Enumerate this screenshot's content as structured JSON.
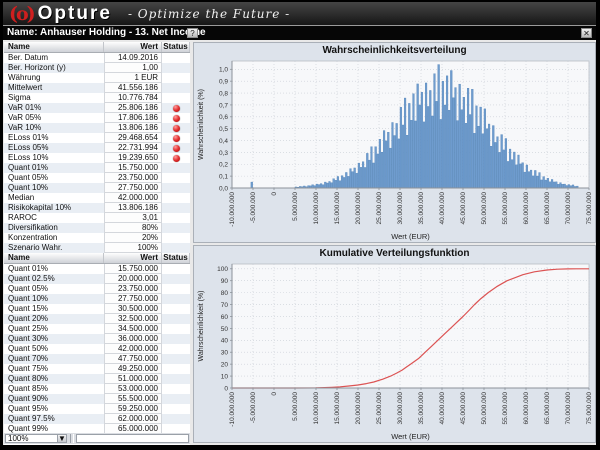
{
  "header": {
    "logo": "(o)",
    "brand": "Opture",
    "tagline": "-  Optimize the Future  -"
  },
  "titlebar": {
    "title": "Name: Anhauser Holding - 13. Net Income",
    "help_label": "?",
    "close_label": "✕"
  },
  "tables": [
    {
      "columns": [
        "Name",
        "Wert",
        "Status"
      ],
      "rows": [
        {
          "name": "Ber. Datum",
          "wert": "14.09.2016",
          "status": false
        },
        {
          "name": "Ber. Horizont (y)",
          "wert": "1,00",
          "status": false
        },
        {
          "name": "Währung",
          "wert": "1 EUR",
          "status": false
        },
        {
          "name": "Mittelwert",
          "wert": "41.556.186",
          "status": false
        },
        {
          "name": "Sigma",
          "wert": "10.776.784",
          "status": false
        },
        {
          "name": "VaR 01%",
          "wert": "25.806.186",
          "status": true
        },
        {
          "name": "VaR 05%",
          "wert": "17.806.186",
          "status": true
        },
        {
          "name": "VaR 10%",
          "wert": "13.806.186",
          "status": true
        },
        {
          "name": "ELoss 01%",
          "wert": "29.468.654",
          "status": true
        },
        {
          "name": "ELoss 05%",
          "wert": "22.731.994",
          "status": true
        },
        {
          "name": "ELoss 10%",
          "wert": "19.239.650",
          "status": true
        },
        {
          "name": "Quant 01%",
          "wert": "15.750.000",
          "status": false
        },
        {
          "name": "Quant 05%",
          "wert": "23.750.000",
          "status": false
        },
        {
          "name": "Quant 10%",
          "wert": "27.750.000",
          "status": false
        },
        {
          "name": "Median",
          "wert": "42.000.000",
          "status": false
        },
        {
          "name": "Risikokapital 10%",
          "wert": "13.806.186",
          "status": false
        },
        {
          "name": "RAROC",
          "wert": "3,01",
          "status": false
        },
        {
          "name": "Diversifikation",
          "wert": "80%",
          "status": false
        },
        {
          "name": "Konzentration",
          "wert": "20%",
          "status": false
        },
        {
          "name": "Szenario Wahr.",
          "wert": "100%",
          "status": false
        }
      ]
    },
    {
      "columns": [
        "Name",
        "Wert",
        "Status"
      ],
      "rows": [
        {
          "name": "Quant 01%",
          "wert": "15.750.000",
          "status": false
        },
        {
          "name": "Quant 02.5%",
          "wert": "20.000.000",
          "status": false
        },
        {
          "name": "Quant 05%",
          "wert": "23.750.000",
          "status": false
        },
        {
          "name": "Quant 10%",
          "wert": "27.750.000",
          "status": false
        },
        {
          "name": "Quant 15%",
          "wert": "30.500.000",
          "status": false
        },
        {
          "name": "Quant 20%",
          "wert": "32.500.000",
          "status": false
        },
        {
          "name": "Quant 25%",
          "wert": "34.500.000",
          "status": false
        },
        {
          "name": "Quant 30%",
          "wert": "36.000.000",
          "status": false
        },
        {
          "name": "Quant 50%",
          "wert": "42.000.000",
          "status": false
        },
        {
          "name": "Quant 70%",
          "wert": "47.750.000",
          "status": false
        },
        {
          "name": "Quant 75%",
          "wert": "49.250.000",
          "status": false
        },
        {
          "name": "Quant 80%",
          "wert": "51.000.000",
          "status": false
        },
        {
          "name": "Quant 85%",
          "wert": "53.000.000",
          "status": false
        },
        {
          "name": "Quant 90%",
          "wert": "55.500.000",
          "status": false
        },
        {
          "name": "Quant 95%",
          "wert": "59.250.000",
          "status": false
        },
        {
          "name": "Quant 97.5%",
          "wert": "62.000.000",
          "status": false
        },
        {
          "name": "Quant 99%",
          "wert": "65.000.000",
          "status": false
        }
      ]
    }
  ],
  "footer": {
    "zoom_value": "100%"
  },
  "colors": {
    "bar_fill": "#6f9cce",
    "bar_stroke": "#4e80b6",
    "cdf_line": "#dc5353",
    "panel_bg": "#dde3eb",
    "plot_bg": "#f7f8fa",
    "grid": "#c9cdd5",
    "axis": "#8c9299",
    "status_red": "#e23030"
  },
  "chart_data": [
    {
      "type": "bar",
      "title": "Wahrscheinlichkeitsverteilung",
      "xlabel": "Wert (EUR)",
      "ylabel": "Wahrscheinlichkeit (%)",
      "x_unit_millions_eur": true,
      "xlim": [
        -10,
        75
      ],
      "ylim": [
        0,
        1.07
      ],
      "grid": true,
      "x_ticks": [
        -10,
        -5,
        0,
        5,
        10,
        15,
        20,
        25,
        30,
        35,
        40,
        45,
        50,
        55,
        60,
        65,
        70,
        75
      ],
      "x_tick_labels": [
        "-10.000.000",
        "-5.000.000",
        "0",
        "5.000.000",
        "10.000.000",
        "15.000.000",
        "20.000.000",
        "25.000.000",
        "30.000.000",
        "35.000.000",
        "40.000.000",
        "45.000.000",
        "50.000.000",
        "55.000.000",
        "60.000.000",
        "65.000.000",
        "70.000.000",
        "75.000.000"
      ],
      "y_ticks": [
        0,
        0.1,
        0.2,
        0.3,
        0.4,
        0.5,
        0.6,
        0.7,
        0.8,
        0.9,
        1.0
      ],
      "y_tick_labels": [
        "0,0",
        "0,1",
        "0,2",
        "0,3",
        "0,4",
        "0,5",
        "0,6",
        "0,7",
        "0,8",
        "0,9",
        "1,0"
      ],
      "bin_start": 5.0,
      "bin_step": 0.5,
      "heights": [
        0.009,
        0.007,
        0.013,
        0.011,
        0.017,
        0.011,
        0.02,
        0.018,
        0.027,
        0.02,
        0.033,
        0.029,
        0.037,
        0.028,
        0.05,
        0.042,
        0.055,
        0.045,
        0.078,
        0.065,
        0.097,
        0.061,
        0.104,
        0.089,
        0.131,
        0.098,
        0.163,
        0.138,
        0.169,
        0.124,
        0.21,
        0.174,
        0.221,
        0.173,
        0.292,
        0.235,
        0.348,
        0.211,
        0.348,
        0.287,
        0.411,
        0.302,
        0.484,
        0.397,
        0.47,
        0.336,
        0.552,
        0.442,
        0.544,
        0.414,
        0.68,
        0.531,
        0.758,
        0.445,
        0.713,
        0.571,
        0.794,
        0.565,
        0.877,
        0.7,
        0.807,
        0.557,
        0.885,
        0.687,
        0.822,
        0.607,
        0.963,
        0.73,
        1.04,
        0.578,
        0.9,
        0.699,
        0.945,
        0.655,
        0.99,
        0.761,
        0.846,
        0.568,
        0.875,
        0.659,
        0.765,
        0.545,
        0.841,
        0.619,
        0.832,
        0.461,
        0.692,
        0.521,
        0.682,
        0.457,
        0.667,
        0.499,
        0.539,
        0.352,
        0.526,
        0.384,
        0.432,
        0.3,
        0.45,
        0.321,
        0.417,
        0.224,
        0.328,
        0.239,
        0.303,
        0.195,
        0.278,
        0.203,
        0.213,
        0.134,
        0.194,
        0.138,
        0.151,
        0.102,
        0.148,
        0.101,
        0.13,
        0.068,
        0.096,
        0.067,
        0.082,
        0.052,
        0.072,
        0.051,
        0.052,
        0.031,
        0.045,
        0.031,
        0.033,
        0.021,
        0.029,
        0.02,
        0.026,
        0.013,
        0.016
      ],
      "outlier_bar": {
        "x": -5.5,
        "height": 0.05
      }
    },
    {
      "type": "line",
      "title": "Kumulative Verteilungsfunktion",
      "xlabel": "Wert (EUR)",
      "ylabel": "Wahrscheinlichkeit (%)",
      "xlim": [
        -10,
        75
      ],
      "ylim": [
        0,
        104
      ],
      "grid": true,
      "x_ticks": [
        -10,
        -5,
        0,
        5,
        10,
        15,
        20,
        25,
        30,
        35,
        40,
        45,
        50,
        55,
        60,
        65,
        70,
        75
      ],
      "x_tick_labels": [
        "-10.000.000",
        "-5.000.000",
        "0",
        "5.000.000",
        "10.000.000",
        "15.000.000",
        "20.000.000",
        "25.000.000",
        "30.000.000",
        "35.000.000",
        "40.000.000",
        "45.000.000",
        "50.000.000",
        "55.000.000",
        "60.000.000",
        "65.000.000",
        "70.000.000",
        "75.000.000"
      ],
      "y_ticks": [
        0,
        10,
        20,
        30,
        40,
        50,
        60,
        70,
        80,
        90,
        100
      ],
      "y_tick_labels": [
        "0",
        "10",
        "20",
        "30",
        "40",
        "50",
        "60",
        "70",
        "80",
        "90",
        "100"
      ],
      "points": [
        [
          -10,
          0
        ],
        [
          0,
          0
        ],
        [
          5,
          0
        ],
        [
          10,
          0.1
        ],
        [
          12,
          0.3
        ],
        [
          13.8,
          0.6
        ],
        [
          15.75,
          1
        ],
        [
          17.8,
          1.7
        ],
        [
          20,
          2.5
        ],
        [
          22,
          3.7
        ],
        [
          23.75,
          5
        ],
        [
          25.8,
          7.3
        ],
        [
          27.75,
          10
        ],
        [
          29.2,
          12.5
        ],
        [
          30.5,
          15
        ],
        [
          31.5,
          17.5
        ],
        [
          32.5,
          20
        ],
        [
          33.5,
          22.5
        ],
        [
          34.5,
          25
        ],
        [
          35.25,
          27.5
        ],
        [
          36,
          30
        ],
        [
          37.5,
          35
        ],
        [
          39,
          40
        ],
        [
          40.5,
          45
        ],
        [
          42,
          50
        ],
        [
          43.5,
          55
        ],
        [
          45,
          60
        ],
        [
          46.4,
          65
        ],
        [
          47.75,
          70
        ],
        [
          49.25,
          75
        ],
        [
          51,
          80
        ],
        [
          53,
          85
        ],
        [
          55.5,
          90
        ],
        [
          59.25,
          95
        ],
        [
          62,
          97.5
        ],
        [
          65,
          99
        ],
        [
          67.5,
          99.6
        ],
        [
          70,
          99.9
        ],
        [
          72,
          100
        ],
        [
          75,
          100
        ]
      ]
    }
  ]
}
